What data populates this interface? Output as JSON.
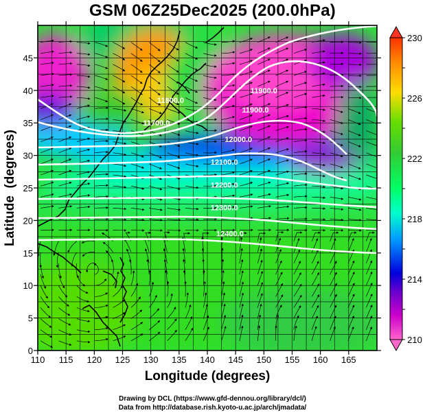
{
  "title": "GSM 06Z25Dec2025 (200.0hPa)",
  "chart_data": {
    "type": "map",
    "title": "GSM 06Z25Dec2025 (200.0hPa)",
    "xlabel": "Longitude (degrees)",
    "ylabel": "Latitude  (degrees)",
    "xlim": [
      110,
      170
    ],
    "ylim": [
      0,
      50
    ],
    "x_ticks": [
      110,
      115,
      120,
      125,
      130,
      135,
      140,
      145,
      150,
      155,
      160,
      165
    ],
    "y_ticks": [
      0,
      5,
      10,
      15,
      20,
      25,
      30,
      35,
      40,
      45
    ],
    "colorbar": {
      "range": [
        210,
        230
      ],
      "tick_labels": [
        "230",
        "226",
        "222",
        "218",
        "214",
        "210"
      ],
      "colors": [
        "#ff66cc",
        "#9900cc",
        "#0000dd",
        "#00ccff",
        "#00ff99",
        "#33cc33",
        "#ccdd00",
        "#ff9900",
        "#ff3300"
      ]
    },
    "contours": [
      {
        "label": "11900.0",
        "lon": 150,
        "lat": 40
      },
      {
        "label": "11900.0",
        "lon": 148.5,
        "lat": 37
      },
      {
        "label": "12000.0",
        "lon": 145.5,
        "lat": 32.5
      },
      {
        "label": "12100.0",
        "lon": 143,
        "lat": 29
      },
      {
        "label": "12200.0",
        "lon": 143,
        "lat": 25.5
      },
      {
        "label": "12300.0",
        "lon": 143,
        "lat": 22
      },
      {
        "label": "12400.0",
        "lon": 144,
        "lat": 18
      },
      {
        "label": "11700.0",
        "lon": 131,
        "lat": 35
      },
      {
        "label": "11800.0",
        "lon": 133.5,
        "lat": 38.5
      }
    ]
  },
  "credits": {
    "line1": "Drawing by DCL (https://www.gfd-dennou.org/library/dcl/)",
    "line2": "Data from http://database.rish.kyoto-u.ac.jp/arch/jmadata/"
  }
}
